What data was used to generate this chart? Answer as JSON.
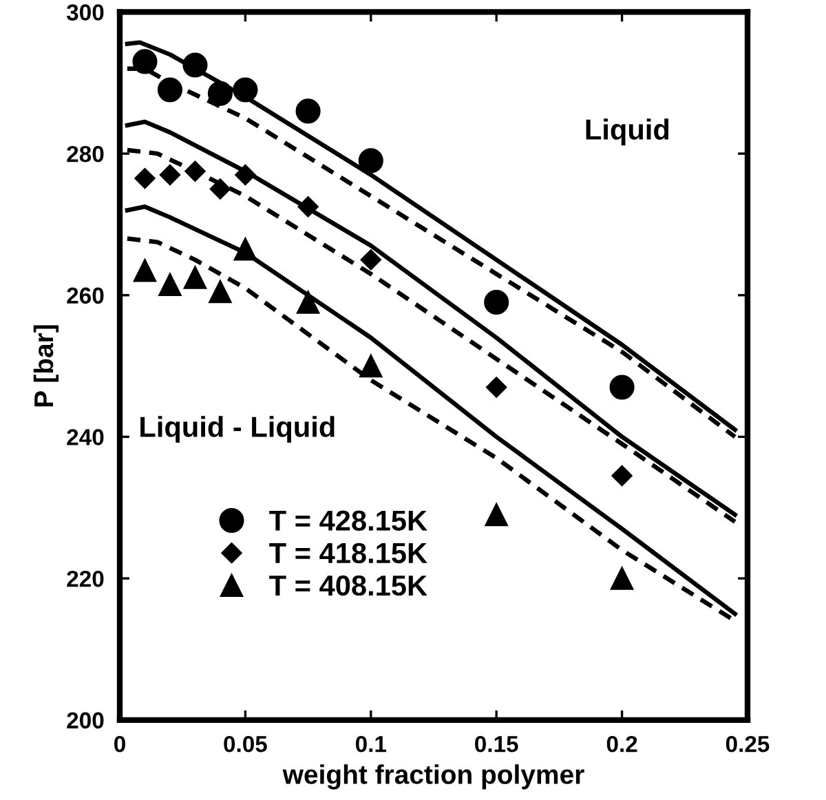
{
  "chart_data": {
    "type": "line",
    "xlabel": "weight fraction polymer",
    "ylabel": "P [bar]",
    "xlim": [
      0,
      0.25
    ],
    "ylim": [
      200,
      300
    ],
    "xticks": [
      0,
      0.05,
      0.1,
      0.15,
      0.2,
      0.25
    ],
    "yticks": [
      200,
      220,
      240,
      260,
      280,
      300
    ],
    "grid": false,
    "legend": "bottom left",
    "annotations": [
      "Liquid",
      "Liquid - Liquid"
    ],
    "series": [
      {
        "name": "T = 428.15K",
        "type": "scatter",
        "marker": "circle",
        "color": "#000000",
        "x": [
          0.01,
          0.02,
          0.03,
          0.04,
          0.05,
          0.075,
          0.1,
          0.15,
          0.2
        ],
        "values": [
          293,
          289,
          292.5,
          288.5,
          289,
          286,
          279,
          259,
          247
        ]
      },
      {
        "name": "T = 418.15K",
        "type": "scatter",
        "marker": "diamond",
        "color": "#000000",
        "x": [
          0.01,
          0.02,
          0.03,
          0.04,
          0.05,
          0.075,
          0.1,
          0.15,
          0.2
        ],
        "values": [
          276.5,
          277,
          277.5,
          275,
          277,
          272.5,
          265,
          247,
          234.5
        ]
      },
      {
        "name": "T = 408.15K",
        "type": "scatter",
        "marker": "triangle",
        "color": "#000000",
        "x": [
          0.01,
          0.02,
          0.03,
          0.04,
          0.05,
          0.075,
          0.1,
          0.15,
          0.2
        ],
        "values": [
          263.5,
          261.5,
          262.5,
          260.5,
          266.5,
          259,
          250,
          229,
          220
        ]
      },
      {
        "line_style": "solid",
        "color": "#000000",
        "x": [
          0.003,
          0.008,
          0.02,
          0.05,
          0.1,
          0.15,
          0.2,
          0.245
        ],
        "values": [
          295.5,
          295.7,
          294,
          288,
          277,
          265,
          253,
          241
        ]
      },
      {
        "line_style": "dashed",
        "color": "#000000",
        "x": [
          0.003,
          0.01,
          0.02,
          0.05,
          0.1,
          0.15,
          0.2,
          0.245
        ],
        "values": [
          292,
          292,
          290,
          285,
          274,
          263,
          252,
          240
        ]
      },
      {
        "line_style": "solid",
        "color": "#000000",
        "x": [
          0.003,
          0.01,
          0.02,
          0.05,
          0.1,
          0.15,
          0.2,
          0.245
        ],
        "values": [
          284,
          284.5,
          283,
          277.5,
          267,
          254,
          240,
          229
        ]
      },
      {
        "line_style": "dashed",
        "color": "#000000",
        "x": [
          0.003,
          0.015,
          0.03,
          0.05,
          0.1,
          0.15,
          0.2,
          0.245
        ],
        "values": [
          280.5,
          280,
          277.5,
          274,
          263,
          251,
          239,
          228
        ]
      },
      {
        "line_style": "solid",
        "color": "#000000",
        "x": [
          0.003,
          0.01,
          0.02,
          0.05,
          0.1,
          0.15,
          0.2,
          0.245
        ],
        "values": [
          272,
          272.5,
          271,
          266,
          254,
          240,
          227,
          215
        ]
      },
      {
        "line_style": "dashed",
        "color": "#000000",
        "x": [
          0.003,
          0.015,
          0.03,
          0.05,
          0.1,
          0.15,
          0.2,
          0.245
        ],
        "values": [
          268,
          267.5,
          265,
          261,
          248,
          237,
          224,
          214
        ]
      }
    ]
  }
}
